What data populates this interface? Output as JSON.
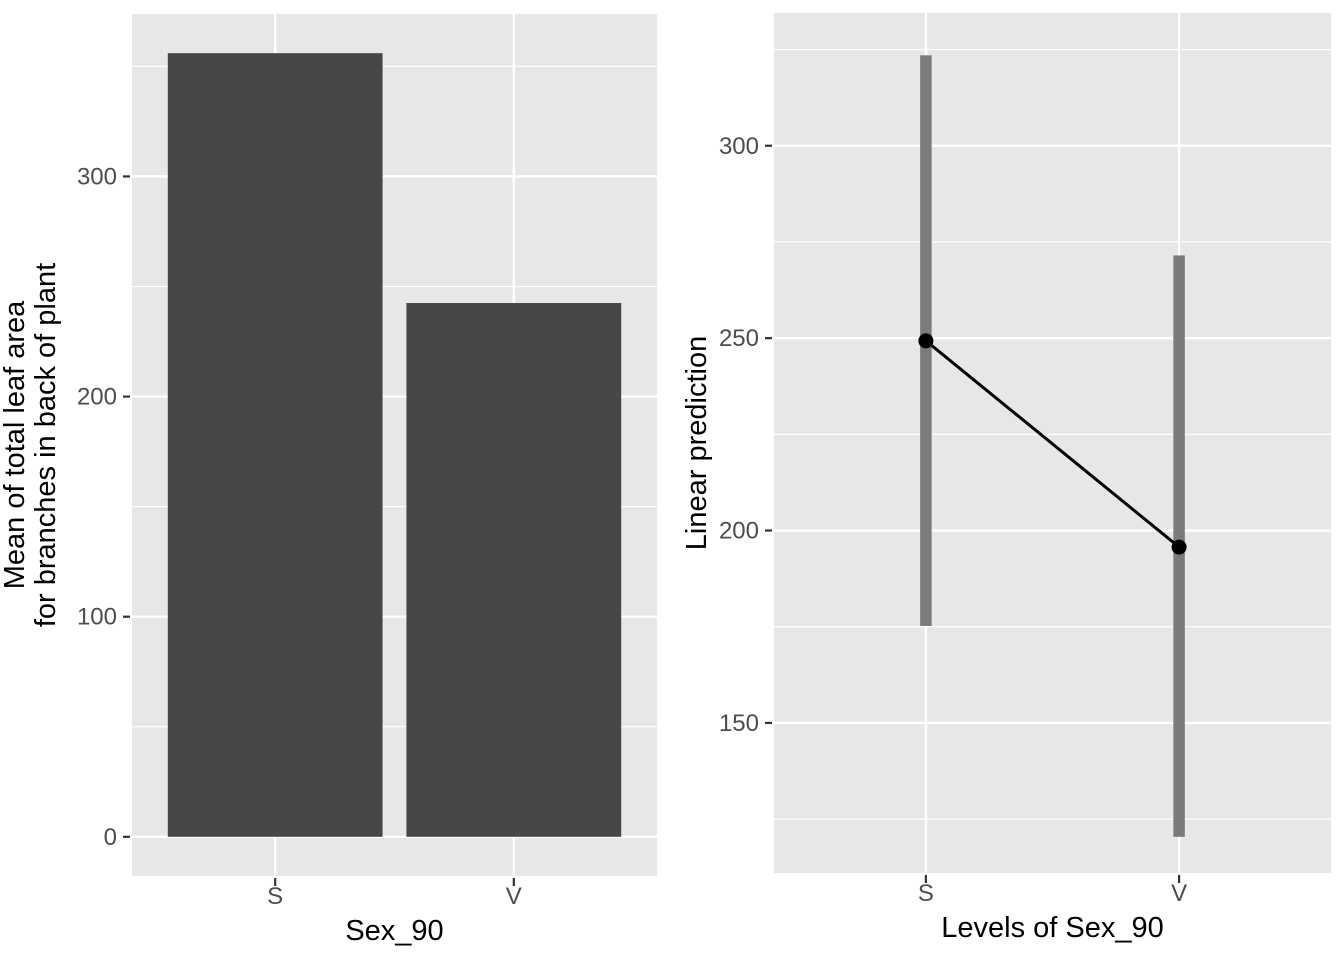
{
  "figure": {
    "background": "#ffffff"
  },
  "theme": {
    "panel_bg": "#e7e7e7",
    "grid_color": "#ffffff",
    "bar_fill": "#474747",
    "ci_color": "#7b7b7b",
    "point_color": "#000000",
    "line_color": "#000000",
    "tick_label_color": "#4d4d4d",
    "axis_title_color": "#000000",
    "tick_mark_color": "#333333"
  },
  "chart_data": [
    {
      "id": "bar-chart",
      "type": "bar",
      "title": "",
      "xlabel": "Sex_90",
      "ylabel": "Mean of total leaf area\nfor branches in back of plant",
      "ylabel_lines": [
        "Mean of total leaf area",
        "for branches in back of plant"
      ],
      "categories": [
        "S",
        "V"
      ],
      "values": [
        356,
        242.5
      ],
      "yticks": [
        0,
        100,
        200,
        300
      ],
      "ylim": [
        -17.8,
        373.8
      ],
      "grid": true,
      "legend": "none",
      "bar_width_fraction": 0.9
    },
    {
      "id": "pointrange-chart",
      "type": "pointrange",
      "title": "",
      "xlabel": "Levels of Sex_90",
      "ylabel": "Linear prediction",
      "ylabel_lines": [
        "Linear prediction"
      ],
      "categories": [
        "S",
        "V"
      ],
      "series": [
        {
          "name": "Linear prediction",
          "values": [
            249.3,
            195.7
          ],
          "ci_low": [
            175.2,
            120.4
          ],
          "ci_high": [
            323.5,
            271.5
          ]
        }
      ],
      "yticks": [
        150,
        200,
        250,
        300
      ],
      "ylim": [
        111,
        334.5
      ],
      "grid": true,
      "legend": "none"
    }
  ]
}
